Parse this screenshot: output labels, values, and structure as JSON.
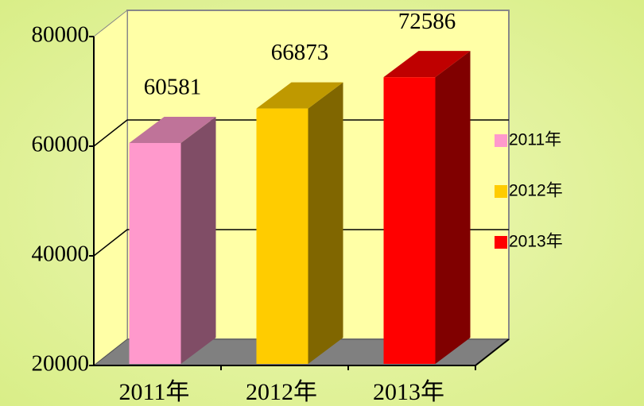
{
  "chart_data": {
    "type": "bar3d",
    "categories": [
      "2011年",
      "2012年",
      "2013年"
    ],
    "values": [
      60581,
      66873,
      72586
    ],
    "colors": [
      "#ff99cc",
      "#ffcc00",
      "#ff0000"
    ],
    "ylim": [
      20000,
      80000
    ],
    "yticks": [
      20000,
      40000,
      60000,
      80000
    ],
    "grid": true,
    "legend": "right"
  }
}
